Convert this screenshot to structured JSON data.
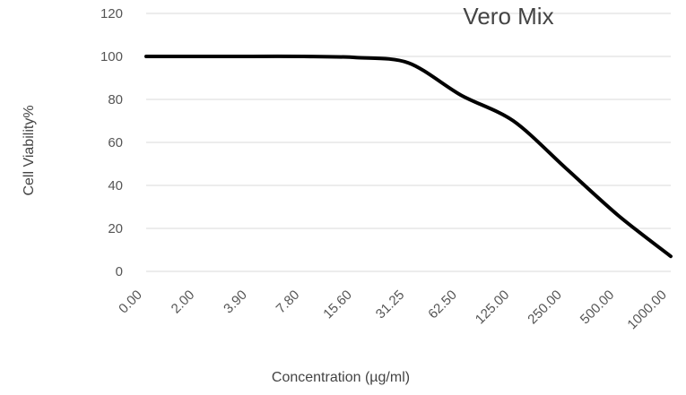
{
  "chart_data": {
    "type": "line",
    "title": "Vero Mix",
    "xlabel": "Concentration (µg/ml)",
    "ylabel": "Cell Viability%",
    "categories": [
      "0.00",
      "2.00",
      "3.90",
      "7.80",
      "15.60",
      "31.25",
      "62.50",
      "125.00",
      "250.00",
      "500.00",
      "1000.00"
    ],
    "y_ticks": [
      "120",
      "100",
      "80",
      "60",
      "40",
      "20",
      "0"
    ],
    "ylim": [
      0,
      120
    ],
    "grid": true,
    "series": [
      {
        "values": [
          100,
          100,
          100,
          100,
          99.5,
          97,
          82,
          70,
          48,
          26,
          7
        ],
        "color": "#000000"
      }
    ]
  }
}
